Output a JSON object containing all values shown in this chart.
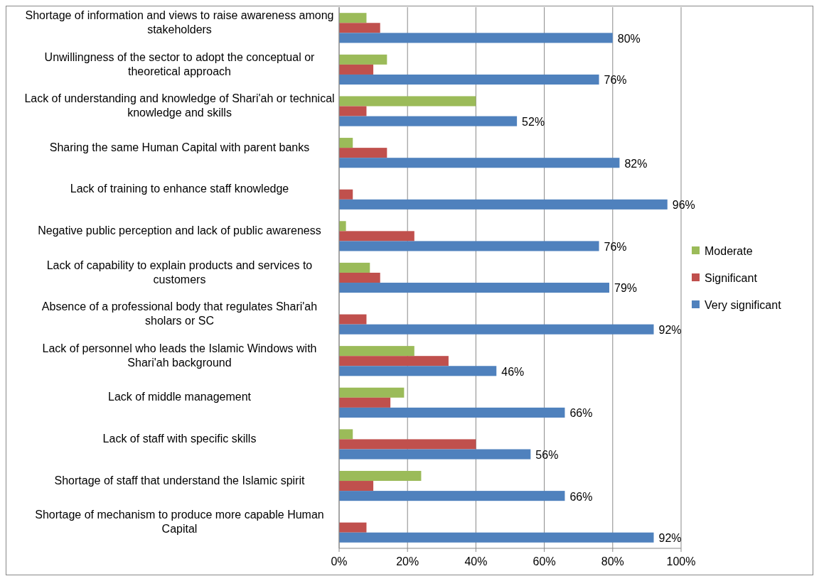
{
  "chart_data": {
    "type": "bar",
    "orientation": "horizontal",
    "categories": [
      "Shortage of information and views to raise awareness among stakeholders",
      "Unwillingness of the sector to adopt the conceptual or theoretical approach",
      "Lack of understanding and knowledge of Shari'ah or technical knowledge and skills",
      "Sharing  the same Human Capital with parent banks",
      "Lack of training to enhance staff knowledge",
      "Negative public perception and lack of public awareness",
      "Lack of capability to explain products and services to customers",
      "Absence of a professional body that regulates Shari'ah sholars or SC",
      "Lack of personnel who leads the Islamic Windows with Shari'ah background",
      "Lack of middle management ",
      "Lack of staff with specific skills",
      "Shortage of staff that understand the Islamic spirit",
      "Shortage of mechanism to produce more capable Human Capital"
    ],
    "series": [
      {
        "name": "Moderate",
        "color": "#9bbb59",
        "values": [
          8,
          14,
          40,
          4,
          null,
          2,
          9,
          null,
          22,
          19,
          4,
          24,
          null
        ]
      },
      {
        "name": "Significant",
        "color": "#c0504d",
        "values": [
          12,
          10,
          8,
          14,
          4,
          22,
          12,
          8,
          32,
          15,
          40,
          10,
          8
        ]
      },
      {
        "name": "Very significant",
        "color": "#4f81bd",
        "values": [
          80,
          76,
          52,
          82,
          96,
          76,
          79,
          92,
          46,
          66,
          56,
          66,
          92
        ],
        "value_labels": [
          "80%",
          "76%",
          "52%",
          "82%",
          "96%",
          "76%",
          "79%",
          "92%",
          "46%",
          "66%",
          "56%",
          "66%",
          "92%"
        ]
      }
    ],
    "xlim": [
      0,
      100
    ],
    "xticks": [
      {
        "value": 0,
        "label": "0%"
      },
      {
        "value": 20,
        "label": "20%"
      },
      {
        "value": 40,
        "label": "40%"
      },
      {
        "value": 60,
        "label": "60%"
      },
      {
        "value": 80,
        "label": "80%"
      },
      {
        "value": 100,
        "label": "100%"
      }
    ],
    "grid": "x",
    "legend": "right"
  }
}
